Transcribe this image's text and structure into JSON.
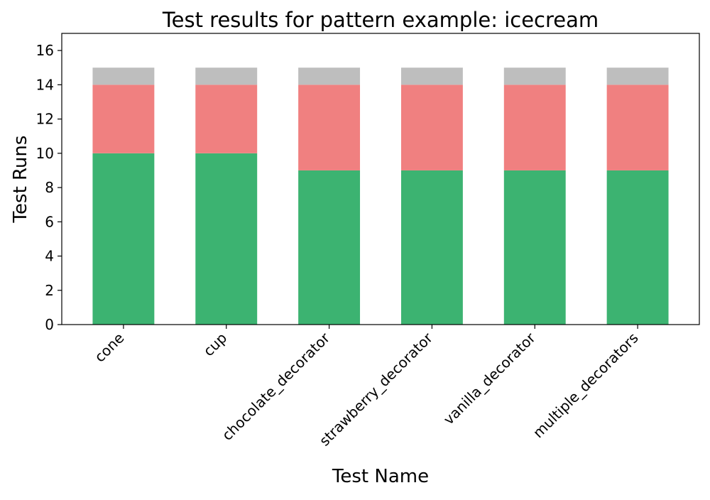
{
  "chart_data": {
    "type": "bar",
    "stacked": true,
    "title": "Test results for pattern example: icecream",
    "xlabel": "Test Name",
    "ylabel": "Test Runs",
    "categories": [
      "cone",
      "cup",
      "chocolate_decorator",
      "strawberry_decorator",
      "vanilla_decorator",
      "multiple_decorators"
    ],
    "series": [
      {
        "color": "#3cb371",
        "values": [
          10,
          10,
          9,
          9,
          9,
          9
        ]
      },
      {
        "color": "#f08080",
        "values": [
          4,
          4,
          5,
          5,
          5,
          5
        ]
      },
      {
        "color": "#bebebe",
        "values": [
          1,
          1,
          1,
          1,
          1,
          1
        ]
      }
    ],
    "ylim": [
      0,
      17
    ],
    "yticks": [
      0,
      2,
      4,
      6,
      8,
      10,
      12,
      14,
      16
    ],
    "xtick_rotation": 45,
    "grid": false,
    "legend": "none"
  }
}
